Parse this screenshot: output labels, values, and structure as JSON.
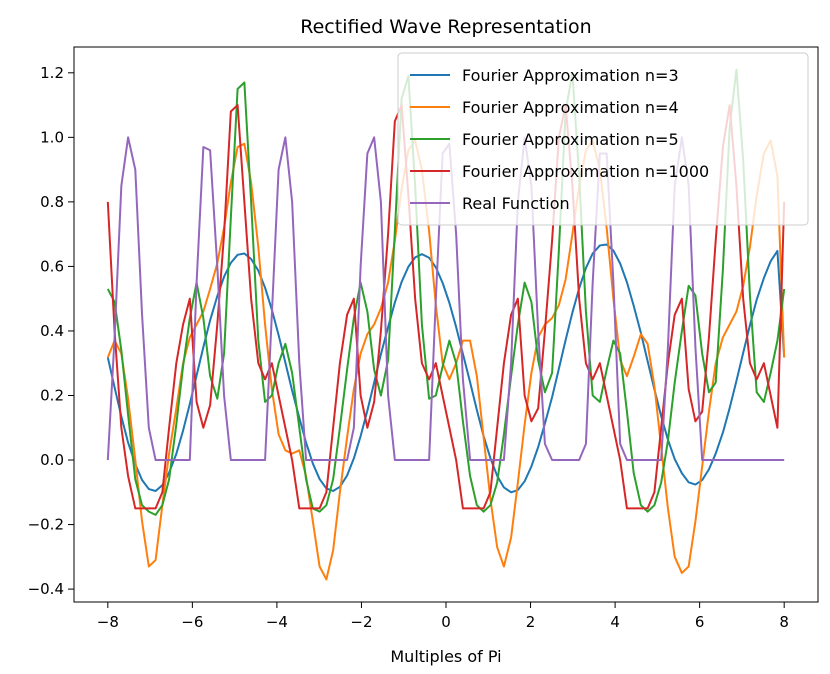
{
  "chart_data": {
    "type": "line",
    "title": "Rectified Wave Representation",
    "xlabel": "Multiples of Pi",
    "ylabel": "",
    "xlim": [
      -8.8,
      8.8
    ],
    "ylim": [
      -0.44,
      1.28
    ],
    "x_ticks": [
      -8,
      -6,
      -4,
      -2,
      0,
      2,
      4,
      6,
      8
    ],
    "x_tick_labels": [
      "−8",
      "−6",
      "−4",
      "−2",
      "0",
      "2",
      "4",
      "6",
      "8"
    ],
    "y_ticks": [
      -0.4,
      -0.2,
      0.0,
      0.2,
      0.4,
      0.6,
      0.8,
      1.0,
      1.2
    ],
    "y_tick_labels": [
      "−0.4",
      "−0.2",
      "0.0",
      "0.2",
      "0.4",
      "0.6",
      "0.8",
      "1.0",
      "1.2"
    ],
    "grid": false,
    "legend_position": "top-right",
    "x": [
      -8.0,
      -7.84,
      -7.68,
      -7.52,
      -7.35,
      -7.19,
      -7.03,
      -6.87,
      -6.71,
      -6.55,
      -6.38,
      -6.22,
      -6.06,
      -5.9,
      -5.74,
      -5.58,
      -5.41,
      -5.25,
      -5.09,
      -4.93,
      -4.77,
      -4.61,
      -4.44,
      -4.28,
      -4.12,
      -3.96,
      -3.8,
      -3.64,
      -3.47,
      -3.31,
      -3.15,
      -2.99,
      -2.83,
      -2.67,
      -2.51,
      -2.34,
      -2.18,
      -2.02,
      -1.86,
      -1.7,
      -1.54,
      -1.37,
      -1.21,
      -1.05,
      -0.89,
      -0.73,
      -0.57,
      -0.4,
      -0.24,
      -0.08,
      0.08,
      0.24,
      0.4,
      0.57,
      0.73,
      0.89,
      1.05,
      1.21,
      1.37,
      1.54,
      1.7,
      1.86,
      2.02,
      2.18,
      2.34,
      2.51,
      2.67,
      2.83,
      2.99,
      3.15,
      3.31,
      3.47,
      3.64,
      3.8,
      3.96,
      4.12,
      4.28,
      4.44,
      4.61,
      4.77,
      4.93,
      5.09,
      5.25,
      5.41,
      5.58,
      5.74,
      5.9,
      6.06,
      6.22,
      6.38,
      6.55,
      6.71,
      6.87,
      7.03,
      7.19,
      7.35,
      7.52,
      7.68,
      7.84,
      8.0
    ],
    "series": [
      {
        "name": "Fourier Approximation n=3",
        "color": "#1f77b4",
        "values": [
          0.318,
          0.225,
          0.135,
          0.054,
          -0.013,
          -0.062,
          -0.09,
          -0.096,
          -0.078,
          -0.039,
          0.019,
          0.091,
          0.174,
          0.262,
          0.35,
          0.433,
          0.508,
          0.568,
          0.611,
          0.636,
          0.64,
          0.623,
          0.587,
          0.534,
          0.466,
          0.387,
          0.302,
          0.215,
          0.131,
          0.054,
          -0.011,
          -0.059,
          -0.088,
          -0.096,
          -0.083,
          -0.048,
          0.005,
          0.074,
          0.153,
          0.24,
          0.328,
          0.412,
          0.488,
          0.552,
          0.599,
          0.628,
          0.638,
          0.627,
          0.597,
          0.549,
          0.487,
          0.412,
          0.329,
          0.241,
          0.155,
          0.074,
          0.006,
          -0.049,
          -0.085,
          -0.1,
          -0.093,
          -0.066,
          -0.02,
          0.04,
          0.113,
          0.195,
          0.283,
          0.372,
          0.457,
          0.532,
          0.595,
          0.64,
          0.665,
          0.668,
          0.649,
          0.609,
          0.551,
          0.478,
          0.394,
          0.306,
          0.219,
          0.136,
          0.063,
          0.003,
          -0.041,
          -0.069,
          -0.076,
          -0.062,
          -0.029,
          0.02,
          0.085,
          0.161,
          0.245,
          0.332,
          0.418,
          0.497,
          0.564,
          0.616,
          0.648,
          0.318
        ]
      },
      {
        "name": "Fourier Approximation n=4",
        "color": "#ff7f0e",
        "values": [
          0.318,
          0.37,
          0.33,
          0.19,
          0.0,
          -0.19,
          -0.33,
          -0.31,
          -0.14,
          0.02,
          0.16,
          0.3,
          0.38,
          0.42,
          0.46,
          0.53,
          0.61,
          0.72,
          0.86,
          0.97,
          0.98,
          0.86,
          0.66,
          0.42,
          0.22,
          0.08,
          0.03,
          0.02,
          0.03,
          -0.05,
          -0.19,
          -0.33,
          -0.37,
          -0.28,
          -0.1,
          0.07,
          0.22,
          0.33,
          0.39,
          0.42,
          0.47,
          0.55,
          0.68,
          0.84,
          0.96,
          0.99,
          0.9,
          0.71,
          0.48,
          0.3,
          0.25,
          0.3,
          0.37,
          0.37,
          0.26,
          0.07,
          -0.12,
          -0.27,
          -0.33,
          -0.24,
          -0.07,
          0.11,
          0.27,
          0.38,
          0.42,
          0.44,
          0.48,
          0.56,
          0.7,
          0.85,
          0.96,
          0.99,
          0.9,
          0.72,
          0.5,
          0.31,
          0.26,
          0.32,
          0.39,
          0.36,
          0.23,
          0.04,
          -0.15,
          -0.3,
          -0.35,
          -0.33,
          -0.19,
          -0.02,
          0.15,
          0.3,
          0.38,
          0.42,
          0.46,
          0.54,
          0.66,
          0.82,
          0.95,
          0.99,
          0.88,
          0.318
        ]
      },
      {
        "name": "Fourier Approximation n=5",
        "color": "#2ca02c",
        "values": [
          0.53,
          0.49,
          0.34,
          0.14,
          -0.06,
          -0.14,
          -0.16,
          -0.17,
          -0.14,
          -0.06,
          0.11,
          0.29,
          0.44,
          0.55,
          0.44,
          0.26,
          0.19,
          0.33,
          0.75,
          1.15,
          1.17,
          0.8,
          0.37,
          0.18,
          0.2,
          0.3,
          0.36,
          0.27,
          0.1,
          -0.06,
          -0.15,
          -0.16,
          -0.14,
          -0.06,
          0.1,
          0.28,
          0.44,
          0.55,
          0.46,
          0.28,
          0.2,
          0.31,
          0.71,
          1.12,
          1.19,
          0.85,
          0.42,
          0.19,
          0.2,
          0.29,
          0.37,
          0.3,
          0.12,
          -0.05,
          -0.14,
          -0.16,
          -0.14,
          -0.07,
          0.08,
          0.26,
          0.42,
          0.55,
          0.49,
          0.31,
          0.21,
          0.27,
          0.65,
          1.08,
          1.2,
          0.88,
          0.46,
          0.2,
          0.18,
          0.28,
          0.37,
          0.33,
          0.15,
          -0.04,
          -0.14,
          -0.16,
          -0.14,
          -0.07,
          0.06,
          0.24,
          0.4,
          0.54,
          0.51,
          0.33,
          0.21,
          0.24,
          0.59,
          1.03,
          1.21,
          0.93,
          0.51,
          0.21,
          0.18,
          0.27,
          0.37,
          0.53
        ]
      },
      {
        "name": "Fourier Approximation n=1000",
        "color": "#d62728",
        "values": [
          0.8,
          0.4,
          0.1,
          -0.05,
          -0.15,
          -0.15,
          -0.15,
          -0.15,
          -0.1,
          0.1,
          0.3,
          0.42,
          0.5,
          0.18,
          0.1,
          0.17,
          0.42,
          0.7,
          1.08,
          1.1,
          0.8,
          0.5,
          0.3,
          0.25,
          0.3,
          0.2,
          0.1,
          0.0,
          -0.15,
          -0.15,
          -0.15,
          -0.15,
          -0.1,
          0.1,
          0.3,
          0.45,
          0.5,
          0.2,
          0.1,
          0.18,
          0.4,
          0.7,
          1.05,
          1.1,
          0.82,
          0.5,
          0.3,
          0.25,
          0.3,
          0.2,
          0.1,
          0.0,
          -0.15,
          -0.15,
          -0.15,
          -0.15,
          -0.1,
          0.1,
          0.3,
          0.45,
          0.5,
          0.2,
          0.12,
          0.16,
          0.4,
          0.68,
          1.0,
          1.1,
          0.85,
          0.5,
          0.3,
          0.25,
          0.3,
          0.2,
          0.1,
          0.0,
          -0.15,
          -0.15,
          -0.15,
          -0.15,
          -0.1,
          0.1,
          0.3,
          0.45,
          0.5,
          0.22,
          0.12,
          0.15,
          0.38,
          0.68,
          0.97,
          1.1,
          0.85,
          0.5,
          0.3,
          0.25,
          0.3,
          0.2,
          0.1,
          0.8
        ]
      },
      {
        "name": "Real Function",
        "color": "#9467bd",
        "values": [
          0.0,
          0.38,
          0.85,
          1.0,
          0.9,
          0.45,
          0.1,
          0.0,
          0.0,
          0.0,
          0.0,
          0.0,
          0.0,
          0.55,
          0.97,
          0.96,
          0.6,
          0.2,
          0.0,
          0.0,
          0.0,
          0.0,
          0.0,
          0.0,
          0.45,
          0.9,
          1.0,
          0.8,
          0.3,
          0.0,
          0.0,
          0.0,
          0.0,
          0.0,
          0.0,
          0.0,
          0.1,
          0.6,
          0.95,
          1.0,
          0.8,
          0.2,
          0.0,
          0.0,
          0.0,
          0.0,
          0.0,
          0.0,
          0.5,
          0.95,
          0.98,
          0.7,
          0.25,
          0.0,
          0.0,
          0.0,
          0.0,
          0.0,
          0.0,
          0.3,
          0.8,
          1.0,
          0.85,
          0.4,
          0.05,
          0.0,
          0.0,
          0.0,
          0.0,
          0.0,
          0.05,
          0.55,
          0.95,
          0.95,
          0.55,
          0.05,
          0.0,
          0.0,
          0.0,
          0.0,
          0.0,
          0.0,
          0.35,
          0.85,
          1.0,
          0.85,
          0.35,
          0.0,
          0.0,
          0.0,
          0.0,
          0.0,
          0.0,
          0.0,
          0.0,
          0.0,
          0.0,
          0.0,
          0.0,
          0.0
        ]
      }
    ]
  }
}
